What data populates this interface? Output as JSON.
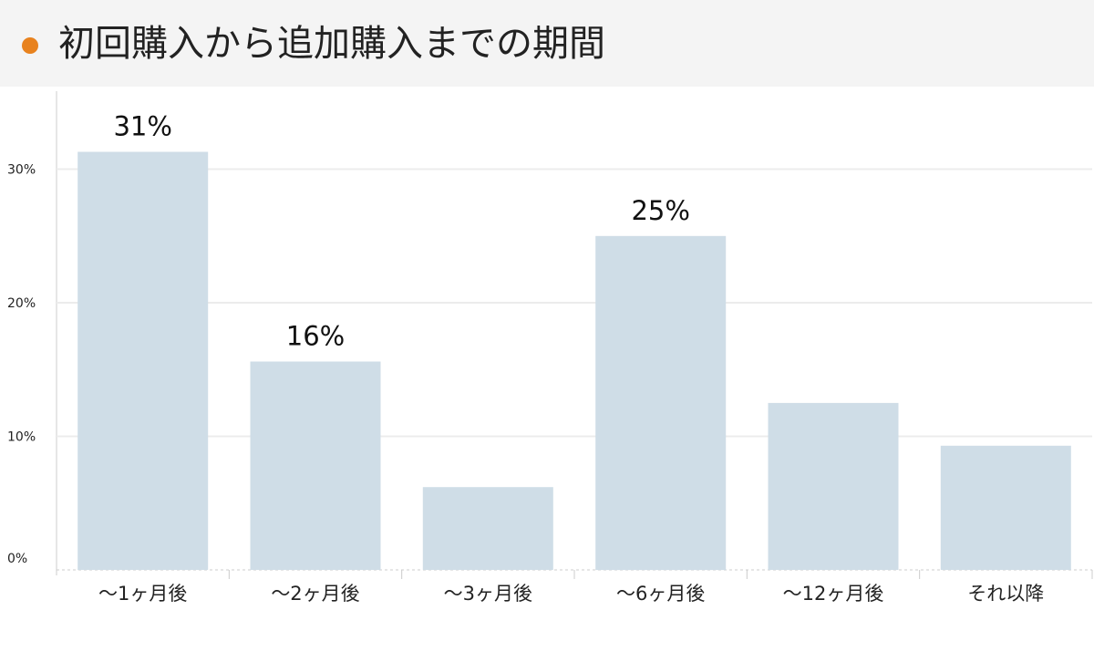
{
  "header": {
    "title": "初回購入から追加購入までの期間",
    "dot_color": "#e8821e",
    "dot_icon": "bullet-dot-icon"
  },
  "colors": {
    "bar": "#cfdde7",
    "grid": "#ececec",
    "axis": "#cccccc",
    "header_bg": "#f4f4f4"
  },
  "chart_data": {
    "type": "bar",
    "title": "初回購入から追加購入までの期間",
    "xlabel": "",
    "ylabel": "",
    "categories": [
      "〜1ヶ月後",
      "〜2ヶ月後",
      "〜3ヶ月後",
      "〜6ヶ月後",
      "〜12ヶ月後",
      "それ以降"
    ],
    "values": [
      31.3,
      15.6,
      6.2,
      25.0,
      12.5,
      9.3
    ],
    "data_labels": [
      "31%",
      "16%",
      "",
      "25%",
      "",
      ""
    ],
    "ylim": [
      0,
      35
    ],
    "yticks": [
      0,
      10,
      20,
      30
    ],
    "ytick_labels": [
      "0%",
      "10%",
      "20%",
      "30%"
    ],
    "grid": true,
    "legend": "none"
  }
}
